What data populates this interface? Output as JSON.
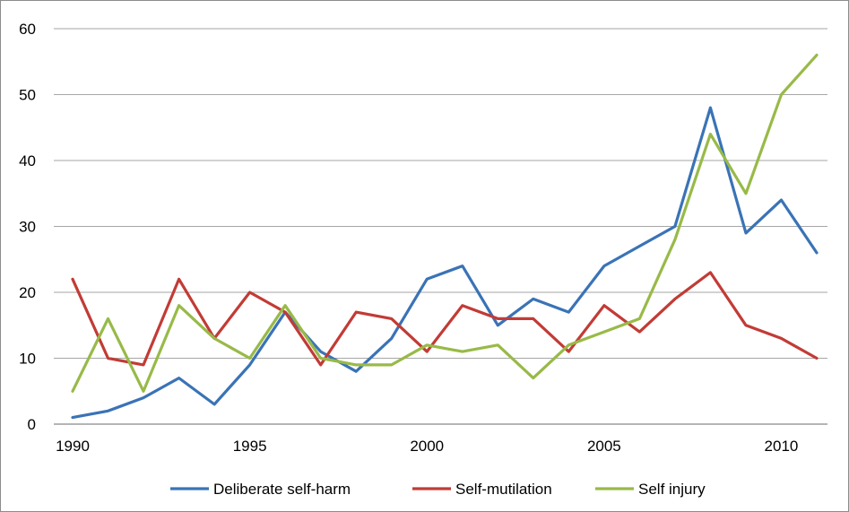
{
  "chart_data": {
    "type": "line",
    "title": "",
    "xlabel": "",
    "ylabel": "",
    "x": [
      1990,
      1991,
      1992,
      1993,
      1994,
      1995,
      1996,
      1997,
      1998,
      1999,
      2000,
      2001,
      2002,
      2003,
      2004,
      2005,
      2006,
      2007,
      2008,
      2009,
      2010,
      2011
    ],
    "xticks": [
      "1990",
      "1995",
      "2000",
      "2005",
      "2010"
    ],
    "yticks": [
      "0",
      "10",
      "20",
      "30",
      "40",
      "50",
      "60"
    ],
    "xlim": [
      1990,
      2011
    ],
    "ylim": [
      0,
      60
    ],
    "grid": "horizontal",
    "legend_position": "bottom",
    "series": [
      {
        "name": "Deliberate self-harm",
        "color": "#3a73b6",
        "values": [
          1,
          2,
          4,
          7,
          3,
          9,
          17,
          11,
          8,
          13,
          22,
          24,
          15,
          19,
          17,
          24,
          27,
          30,
          48,
          29,
          34,
          26
        ]
      },
      {
        "name": "Self-mutilation",
        "color": "#c23b36",
        "values": [
          22,
          10,
          9,
          22,
          13,
          20,
          17,
          9,
          17,
          16,
          11,
          18,
          16,
          16,
          11,
          18,
          14,
          19,
          23,
          15,
          13,
          10
        ]
      },
      {
        "name": "Self injury",
        "color": "#98ba48",
        "values": [
          5,
          16,
          5,
          18,
          13,
          10,
          18,
          10,
          9,
          9,
          12,
          11,
          12,
          7,
          12,
          14,
          16,
          28,
          44,
          35,
          50,
          56
        ]
      }
    ]
  }
}
